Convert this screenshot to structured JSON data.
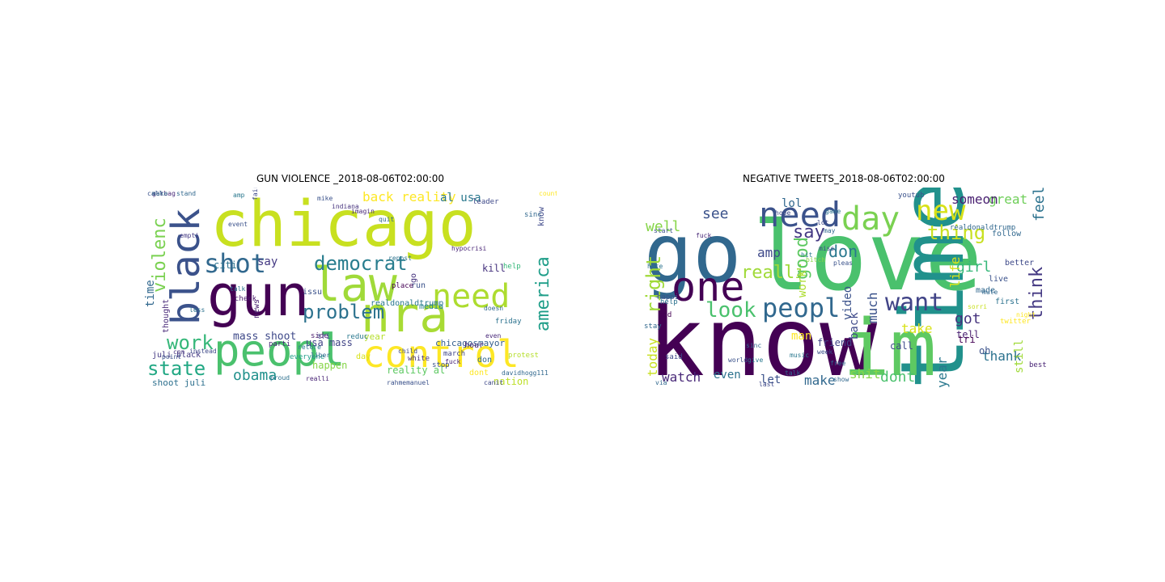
{
  "figure": {
    "panels": [
      {
        "title": "GUN VIOLENCE _2018-08-06T02:00:00",
        "words": [
          {
            "text": "chicago",
            "color": "#c8e020"
          },
          {
            "text": "gun",
            "color": "#440154"
          },
          {
            "text": "law",
            "color": "#a0da39"
          },
          {
            "text": "peopl",
            "color": "#4ac16d"
          },
          {
            "text": "nra",
            "color": "#a8db34"
          },
          {
            "text": "need",
            "color": "#addc30"
          },
          {
            "text": "black",
            "color": "#3b528b"
          },
          {
            "text": "shot",
            "color": "#31688e"
          },
          {
            "text": "control",
            "color": "#fde725"
          },
          {
            "text": "democrat",
            "color": "#287d8e"
          },
          {
            "text": "problem",
            "color": "#2c728e"
          },
          {
            "text": "violenc",
            "color": "#7ad151"
          },
          {
            "text": "america",
            "color": "#1f9e89"
          },
          {
            "text": "work",
            "color": "#35b779"
          },
          {
            "text": "state",
            "color": "#22a884"
          },
          {
            "text": "obama",
            "color": "#21918c"
          },
          {
            "text": "back reality",
            "color": "#fde725"
          },
          {
            "text": "time",
            "color": "#31688e"
          },
          {
            "text": "al usa",
            "color": "#2a788e"
          },
          {
            "text": "say",
            "color": "#443983"
          },
          {
            "text": "citi",
            "color": "#2c728e"
          },
          {
            "text": "mass shoot",
            "color": "#3e4989"
          },
          {
            "text": "kill",
            "color": "#46337e"
          },
          {
            "text": "year",
            "color": "#b5de2b"
          },
          {
            "text": "happen",
            "color": "#86d549"
          },
          {
            "text": "reality al",
            "color": "#5ec962"
          },
          {
            "text": "usa mass",
            "color": "#414487"
          },
          {
            "text": "nation",
            "color": "#bddf26"
          },
          {
            "text": "shoot juli",
            "color": "#2d708e"
          },
          {
            "text": "chicagosmayor",
            "color": "#355f8d"
          },
          {
            "text": "know",
            "color": "#3e4989"
          },
          {
            "text": "news",
            "color": "#481f70"
          },
          {
            "text": "realdonaldtrump",
            "color": "#2a788e"
          },
          {
            "text": "juli black",
            "color": "#443983"
          },
          {
            "text": "media",
            "color": "#26828e"
          },
          {
            "text": "run",
            "color": "#3b528b"
          },
          {
            "text": "go",
            "color": "#46337e"
          },
          {
            "text": "day",
            "color": "#d8e219"
          },
          {
            "text": "dont",
            "color": "#fde725"
          },
          {
            "text": "don",
            "color": "#31688e"
          },
          {
            "text": "thought",
            "color": "#482878"
          },
          {
            "text": "issu",
            "color": "#3b528b"
          },
          {
            "text": "hour",
            "color": "#482475"
          },
          {
            "text": "help",
            "color": "#35b779"
          },
          {
            "text": "check",
            "color": "#481a6c"
          },
          {
            "text": "place",
            "color": "#440154"
          },
          {
            "text": "leader",
            "color": "#3e4989"
          },
          {
            "text": "sinc",
            "color": "#31688e"
          },
          {
            "text": "everyone",
            "color": "#1f9e89"
          },
          {
            "text": "friday",
            "color": "#2c728e"
          },
          {
            "text": "stop",
            "color": "#3b528b"
          },
          {
            "text": "march",
            "color": "#404688"
          },
          {
            "text": "white",
            "color": "#46337e"
          },
          {
            "text": "protest",
            "color": "#b5de2b"
          },
          {
            "text": "parti",
            "color": "#482878"
          },
          {
            "text": "side",
            "color": "#481a6c"
          },
          {
            "text": "reduc",
            "color": "#2a788e"
          },
          {
            "text": "tri",
            "color": "#3e4989"
          },
          {
            "text": "less",
            "color": "#2c728e"
          },
          {
            "text": "cnn",
            "color": "#46337e"
          },
          {
            "text": "instead",
            "color": "#3e4989"
          },
          {
            "text": "davidhogg111",
            "color": "#31688e"
          },
          {
            "text": "realli",
            "color": "#482475"
          },
          {
            "text": "proud",
            "color": "#2d708e"
          },
          {
            "text": "call",
            "color": "#3b528b"
          },
          {
            "text": "stand",
            "color": "#31688e"
          },
          {
            "text": "fairfax",
            "color": "#3e4989"
          },
          {
            "text": "amp",
            "color": "#2a788e"
          },
          {
            "text": "mike",
            "color": "#3b528b"
          },
          {
            "text": "indiana",
            "color": "#46337e"
          },
          {
            "text": "imagin",
            "color": "#482878"
          },
          {
            "text": "country",
            "color": "#fde725"
          },
          {
            "text": "quit",
            "color": "#31688e"
          },
          {
            "text": "hypocrisi",
            "color": "#482475"
          },
          {
            "text": "empti",
            "color": "#443983"
          },
          {
            "text": "event",
            "color": "#3b528b"
          },
          {
            "text": "talk",
            "color": "#2c728e"
          },
          {
            "text": "doesn",
            "color": "#31688e"
          },
          {
            "text": "child",
            "color": "#3e4989"
          },
          {
            "text": "even",
            "color": "#482878"
          },
          {
            "text": "point",
            "color": "#3b528b"
          },
          {
            "text": "retore",
            "color": "#2a788e"
          },
          {
            "text": "liber",
            "color": "#31688e"
          },
          {
            "text": "fuck",
            "color": "#482475"
          },
          {
            "text": "canit",
            "color": "#3e4989"
          },
          {
            "text": "repost",
            "color": "#2c728e"
          },
          {
            "text": "rahmemanuel",
            "color": "#3b528b"
          },
          {
            "text": "garbag",
            "color": "#482878"
          },
          {
            "text": "make",
            "color": "#31688e"
          }
        ]
      },
      {
        "title": "NEGATIVE TWEETS_2018-08-06T02:00:00",
        "words": [
          {
            "text": "love",
            "color": "#4ac16d"
          },
          {
            "text": "go",
            "color": "#31688e"
          },
          {
            "text": "time",
            "color": "#21918c"
          },
          {
            "text": "know",
            "color": "#440154"
          },
          {
            "text": "im",
            "color": "#5ec962"
          },
          {
            "text": "one",
            "color": "#440154"
          },
          {
            "text": "need",
            "color": "#3b528b"
          },
          {
            "text": "day",
            "color": "#7ad151"
          },
          {
            "text": "new",
            "color": "#d8e219"
          },
          {
            "text": "peopl",
            "color": "#31688e"
          },
          {
            "text": "want",
            "color": "#414487"
          },
          {
            "text": "look",
            "color": "#4ac16d"
          },
          {
            "text": "realli",
            "color": "#a0da39"
          },
          {
            "text": "right",
            "color": "#a0da39"
          },
          {
            "text": "good",
            "color": "#5ec962"
          },
          {
            "text": "thing",
            "color": "#c8e020"
          },
          {
            "text": "say",
            "color": "#443983"
          },
          {
            "text": "don",
            "color": "#2a788e"
          },
          {
            "text": "see",
            "color": "#3b528b"
          },
          {
            "text": "well",
            "color": "#86d549"
          },
          {
            "text": "amp",
            "color": "#3e4989"
          },
          {
            "text": "lol",
            "color": "#31688e"
          },
          {
            "text": "work",
            "color": "#addc30"
          },
          {
            "text": "video",
            "color": "#3b528b"
          },
          {
            "text": "feel",
            "color": "#2c728e"
          },
          {
            "text": "great",
            "color": "#6ece58"
          },
          {
            "text": "think",
            "color": "#443983"
          },
          {
            "text": "someon",
            "color": "#481f70"
          },
          {
            "text": "girl",
            "color": "#35b779"
          },
          {
            "text": "got",
            "color": "#46337e"
          },
          {
            "text": "life",
            "color": "#d8e219"
          },
          {
            "text": "take",
            "color": "#d8e219"
          },
          {
            "text": "much",
            "color": "#3b528b"
          },
          {
            "text": "today",
            "color": "#c8e020"
          },
          {
            "text": "watch",
            "color": "#482878"
          },
          {
            "text": "even",
            "color": "#2c728e"
          },
          {
            "text": "let",
            "color": "#3b528b"
          },
          {
            "text": "make",
            "color": "#31688e"
          },
          {
            "text": "shit",
            "color": "#86d549"
          },
          {
            "text": "dont",
            "color": "#4ac16d"
          },
          {
            "text": "year",
            "color": "#2a788e"
          },
          {
            "text": "thank",
            "color": "#2c728e"
          },
          {
            "text": "back",
            "color": "#3e4989"
          },
          {
            "text": "friend",
            "color": "#414487"
          },
          {
            "text": "call",
            "color": "#3e4989"
          },
          {
            "text": "tell",
            "color": "#481f70"
          },
          {
            "text": "man",
            "color": "#fde725"
          },
          {
            "text": "still",
            "color": "#a0da39"
          },
          {
            "text": "oh",
            "color": "#3b528b"
          },
          {
            "text": "tri",
            "color": "#440154"
          },
          {
            "text": "live",
            "color": "#3b528b"
          },
          {
            "text": "made",
            "color": "#31688e"
          },
          {
            "text": "first",
            "color": "#2c728e"
          },
          {
            "text": "better",
            "color": "#3e4989"
          },
          {
            "text": "follow",
            "color": "#31688e"
          },
          {
            "text": "youtub",
            "color": "#3b528b"
          },
          {
            "text": "realdonaldtrump",
            "color": "#31688e"
          },
          {
            "text": "twitter",
            "color": "#fde725"
          },
          {
            "text": "best",
            "color": "#482475"
          },
          {
            "text": "happi",
            "color": "#3b528b"
          },
          {
            "text": "help",
            "color": "#2c728e"
          },
          {
            "text": "stay",
            "color": "#31688e"
          },
          {
            "text": "god",
            "color": "#440154"
          },
          {
            "text": "said",
            "color": "#3e4989"
          },
          {
            "text": "music",
            "color": "#2a788e"
          },
          {
            "text": "show",
            "color": "#31688e"
          },
          {
            "text": "week",
            "color": "#3b528b"
          },
          {
            "text": "free",
            "color": "#31688e"
          },
          {
            "text": "hope",
            "color": "#3e4989"
          },
          {
            "text": "game",
            "color": "#2c728e"
          },
          {
            "text": "via",
            "color": "#31688e"
          },
          {
            "text": "world",
            "color": "#3b528b"
          },
          {
            "text": "give",
            "color": "#2a788e"
          },
          {
            "text": "last",
            "color": "#3e4989"
          },
          {
            "text": "talk",
            "color": "#31688e"
          },
          {
            "text": "start",
            "color": "#3b528b"
          },
          {
            "text": "hate",
            "color": "#2c728e"
          },
          {
            "text": "lot",
            "color": "#3e4989"
          },
          {
            "text": "fuck",
            "color": "#482878"
          },
          {
            "text": "sinc",
            "color": "#31688e"
          },
          {
            "text": "pleas",
            "color": "#3b528b"
          },
          {
            "text": "hit",
            "color": "#2a788e"
          },
          {
            "text": "bitch",
            "color": "#86d549"
          },
          {
            "text": "miss",
            "color": "#3e4989"
          },
          {
            "text": "may",
            "color": "#31688e"
          },
          {
            "text": "sorri",
            "color": "#c8e020"
          },
          {
            "text": "night",
            "color": "#fde725"
          },
          {
            "text": "mute",
            "color": "#31688e"
          }
        ]
      }
    ]
  }
}
